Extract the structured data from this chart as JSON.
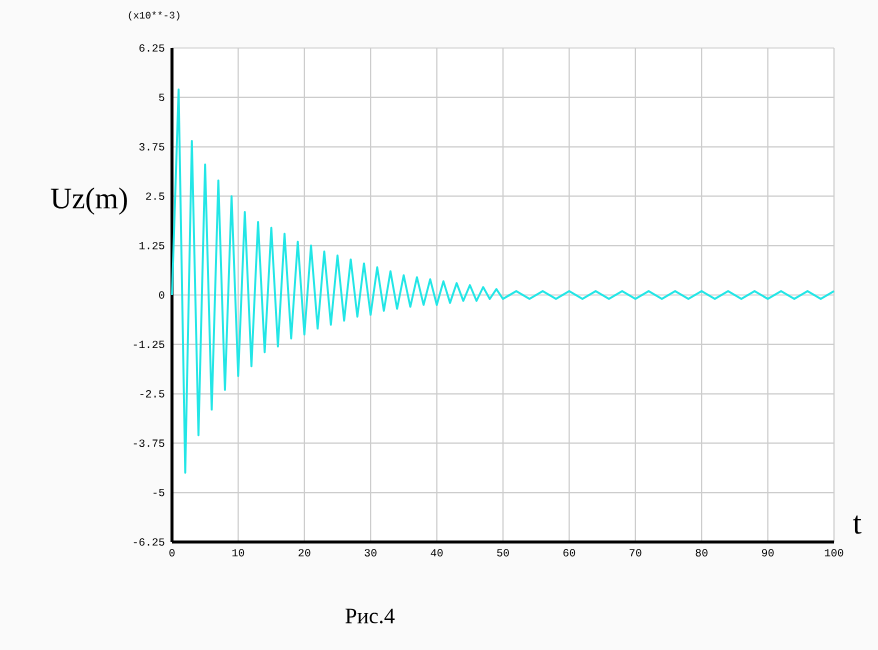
{
  "chart_data": {
    "type": "line",
    "xlabel": "t",
    "ylabel": "Uz(m)",
    "annotations": [
      "(x10**-3)",
      "Рис.4"
    ],
    "xlim": [
      0,
      100
    ],
    "ylim": [
      -6.25,
      6.25
    ],
    "xticks": [
      0,
      10,
      20,
      30,
      40,
      50,
      60,
      70,
      80,
      90,
      100
    ],
    "yticks": [
      -6.25,
      -5,
      -3.75,
      -2.5,
      -1.25,
      0,
      1.25,
      2.5,
      3.75,
      5,
      6.25
    ],
    "grid": true,
    "marker": "none",
    "line_style": "solid",
    "series": [
      {
        "color": "#22e6e6",
        "x": [
          0,
          1,
          2,
          3,
          4,
          5,
          6,
          7,
          8,
          9,
          10,
          11,
          12,
          13,
          14,
          15,
          16,
          17,
          18,
          19,
          20,
          21,
          22,
          23,
          24,
          25,
          26,
          27,
          28,
          29,
          30,
          31,
          32,
          33,
          34,
          35,
          36,
          37,
          38,
          39,
          40,
          41,
          42,
          43,
          44,
          45,
          46,
          47,
          48,
          49,
          50,
          52,
          54,
          56,
          58,
          60,
          62,
          64,
          66,
          68,
          70,
          72,
          74,
          76,
          78,
          80,
          82,
          84,
          86,
          88,
          90,
          92,
          94,
          96,
          98,
          100
        ],
        "values": [
          0,
          5.2,
          -4.5,
          3.9,
          -3.55,
          3.3,
          -2.9,
          2.9,
          -2.4,
          2.5,
          -2.05,
          2.1,
          -1.8,
          1.85,
          -1.45,
          1.7,
          -1.3,
          1.55,
          -1.1,
          1.35,
          -1.0,
          1.25,
          -0.85,
          1.1,
          -0.75,
          1.0,
          -0.65,
          0.9,
          -0.55,
          0.8,
          -0.5,
          0.7,
          -0.4,
          0.6,
          -0.35,
          0.5,
          -0.3,
          0.45,
          -0.25,
          0.4,
          -0.25,
          0.35,
          -0.2,
          0.3,
          -0.15,
          0.25,
          -0.15,
          0.2,
          -0.1,
          0.15,
          -0.1,
          0.1,
          -0.1,
          0.1,
          -0.1,
          0.1,
          -0.1,
          0.1,
          -0.1,
          0.1,
          -0.1,
          0.1,
          -0.1,
          0.1,
          -0.1,
          0.1,
          -0.1,
          0.1,
          -0.1,
          0.1,
          -0.1,
          0.1,
          -0.1,
          0.1,
          -0.1,
          0.1
        ]
      }
    ]
  }
}
